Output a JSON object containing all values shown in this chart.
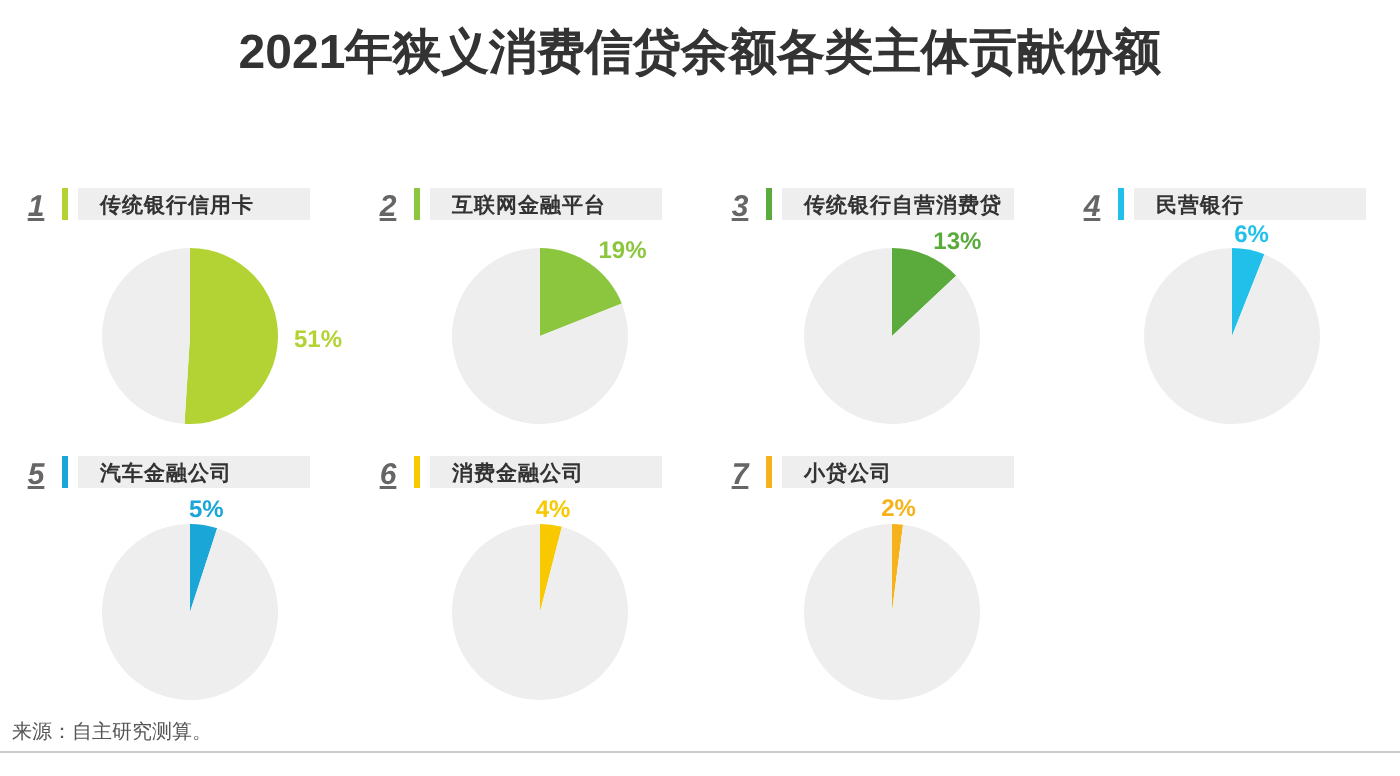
{
  "chart_data": [
    {
      "type": "pie",
      "title": "2021年狭义消费信贷余额各类主体贡献份额",
      "subtitle": "传统银行信用卡",
      "annotations": [
        "1",
        "来源：自主研究测算。"
      ],
      "categories": [
        null,
        null
      ],
      "values": [
        51,
        49
      ],
      "value_labels": [
        "51%",
        null
      ],
      "colors": [
        "#b3d334",
        "#eeeeee"
      ]
    },
    {
      "type": "pie",
      "subtitle": "互联网金融平台",
      "annotations": [
        "2"
      ],
      "categories": [
        null,
        null
      ],
      "values": [
        19,
        81
      ],
      "value_labels": [
        "19%",
        null
      ],
      "colors": [
        "#8cc63f",
        "#eeeeee"
      ]
    },
    {
      "type": "pie",
      "subtitle": "传统银行自营消费贷",
      "annotations": [
        "3"
      ],
      "categories": [
        null,
        null
      ],
      "values": [
        13,
        87
      ],
      "value_labels": [
        "13%",
        null
      ],
      "colors": [
        "#5aab3c",
        "#eeeeee"
      ]
    },
    {
      "type": "pie",
      "subtitle": "民营银行",
      "annotations": [
        "4"
      ],
      "categories": [
        null,
        null
      ],
      "values": [
        6,
        94
      ],
      "value_labels": [
        "6%",
        null
      ],
      "colors": [
        "#20c0ea",
        "#eeeeee"
      ]
    },
    {
      "type": "pie",
      "subtitle": "汽车金融公司",
      "annotations": [
        "5"
      ],
      "categories": [
        null,
        null
      ],
      "values": [
        5,
        95
      ],
      "value_labels": [
        "5%",
        null
      ],
      "colors": [
        "#1aa6d6",
        "#eeeeee"
      ]
    },
    {
      "type": "pie",
      "subtitle": "消费金融公司",
      "annotations": [
        "6"
      ],
      "categories": [
        null,
        null
      ],
      "values": [
        4,
        96
      ],
      "value_labels": [
        "4%",
        null
      ],
      "colors": [
        "#f8c800",
        "#eeeeee"
      ]
    },
    {
      "type": "pie",
      "subtitle": "小贷公司",
      "annotations": [
        "7"
      ],
      "categories": [
        null,
        null
      ],
      "values": [
        2,
        98
      ],
      "value_labels": [
        "2%",
        null
      ],
      "colors": [
        "#f5b21a",
        "#eeeeee"
      ]
    }
  ]
}
